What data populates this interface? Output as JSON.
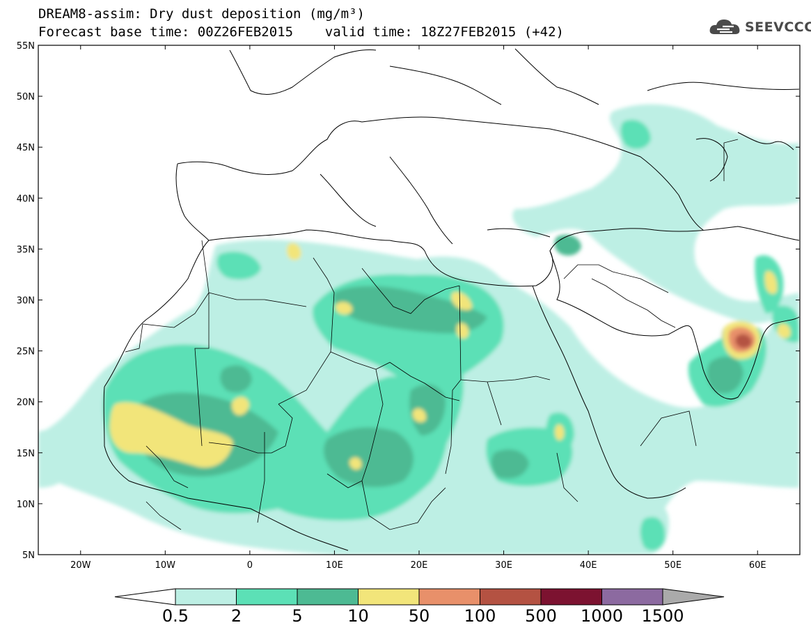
{
  "header": {
    "title_line1": "DREAM8-assim: Dry dust deposition (mg/m³)",
    "title_line2": "Forecast base time: 00Z26FEB2015    valid time: 18Z27FEB2015 (+42)"
  },
  "logo": {
    "text": "SEEVCCC"
  },
  "map": {
    "lon_range": [
      -25,
      65
    ],
    "lat_range": [
      5,
      55
    ],
    "lat_labels": [
      "55N",
      "50N",
      "45N",
      "40N",
      "35N",
      "30N",
      "25N",
      "20N",
      "15N",
      "10N",
      "5N"
    ],
    "lon_labels": [
      "20W",
      "10W",
      "0",
      "10E",
      "20E",
      "30E",
      "40E",
      "50E",
      "60E"
    ]
  },
  "colorbar": {
    "labels": [
      "0.5",
      "2",
      "5",
      "10",
      "50",
      "100",
      "500",
      "1000",
      "1500"
    ],
    "colors": [
      "#bdefe4",
      "#5ce0b6",
      "#4dba93",
      "#f2e57a",
      "#e8906a",
      "#b45242",
      "#7c1230",
      "#8c6aa0"
    ]
  },
  "chart_data": {
    "type": "heatmap",
    "title": "DREAM8-assim: Dry dust deposition (mg/m³)",
    "variable": "Dry dust deposition",
    "units": "mg/m³",
    "forecast_base_time": "00Z26FEB2015",
    "valid_time": "18Z27FEB2015 (+42)",
    "lon_range": [
      -25,
      65
    ],
    "lat_range": [
      5,
      55
    ],
    "levels": [
      0.5,
      2,
      5,
      10,
      50,
      100,
      500,
      1000,
      1500
    ],
    "level_colors": [
      "#bdefe4",
      "#5ce0b6",
      "#4dba93",
      "#f2e57a",
      "#e8906a",
      "#b45242",
      "#7c1230",
      "#8c6aa0"
    ],
    "regions": [
      {
        "lon": -10,
        "lat": 15.5,
        "level": 10
      },
      {
        "lon": 4.5,
        "lat": 19.5,
        "level": 10
      },
      {
        "lon": 12,
        "lat": 29.5,
        "level": 10
      },
      {
        "lon": 27,
        "lat": 29.5,
        "level": 10
      },
      {
        "lon": 25,
        "lat": 26.5,
        "level": 10
      },
      {
        "lon": 20,
        "lat": 18.5,
        "level": 10
      },
      {
        "lon": 15,
        "lat": 14.5,
        "level": 10
      },
      {
        "lon": 37.5,
        "lat": 16.5,
        "level": 10
      },
      {
        "lon": 58.5,
        "lat": 25.5,
        "level": 500
      },
      {
        "lon": 61,
        "lat": 30.5,
        "level": 10
      },
      {
        "lon": 63,
        "lat": 26.5,
        "level": 10
      },
      {
        "lon": 5.5,
        "lat": 34.5,
        "level": 10
      }
    ]
  }
}
